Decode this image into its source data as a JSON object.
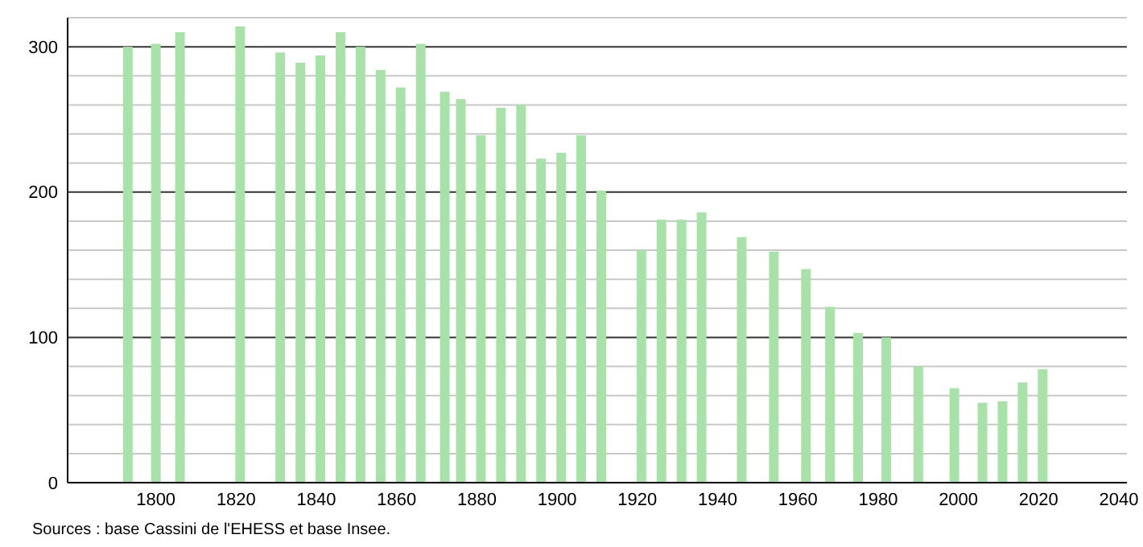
{
  "chart_data": {
    "type": "bar",
    "x": [
      1793,
      1800,
      1806,
      1821,
      1831,
      1836,
      1841,
      1846,
      1851,
      1856,
      1861,
      1866,
      1872,
      1876,
      1881,
      1886,
      1891,
      1896,
      1901,
      1906,
      1911,
      1921,
      1926,
      1931,
      1936,
      1946,
      1954,
      1962,
      1968,
      1975,
      1982,
      1990,
      1999,
      2006,
      2011,
      2016,
      2021
    ],
    "values": [
      300,
      302,
      310,
      314,
      296,
      289,
      294,
      310,
      300,
      284,
      272,
      302,
      269,
      264,
      239,
      258,
      260,
      223,
      227,
      239,
      201,
      160,
      181,
      181,
      186,
      169,
      159,
      147,
      121,
      103,
      100,
      80,
      65,
      55,
      56,
      69,
      78
    ],
    "color": "#a8e2a8",
    "xlim": [
      1778,
      2042
    ],
    "xticks": [
      1800,
      1820,
      1840,
      1860,
      1880,
      1900,
      1920,
      1940,
      1960,
      1980,
      2000,
      2020,
      2040
    ],
    "ylim": [
      0,
      320
    ],
    "yticks": [
      0,
      {
        "value": 20,
        "label": null
      },
      {
        "value": 40,
        "label": null
      },
      {
        "value": 60,
        "label": null
      },
      {
        "value": 80,
        "label": null
      },
      100,
      {
        "value": 120,
        "label": null
      },
      {
        "value": 140,
        "label": null
      },
      {
        "value": 160,
        "label": null
      },
      {
        "value": 180,
        "label": null
      },
      200,
      {
        "value": 220,
        "label": null
      },
      {
        "value": 240,
        "label": null
      },
      {
        "value": 260,
        "label": null
      },
      {
        "value": 280,
        "label": null
      },
      300,
      {
        "value": 320,
        "label": null
      }
    ],
    "grid": true,
    "annotations": [
      "Sources : base Cassini de l'EHESS et base Insee."
    ]
  }
}
